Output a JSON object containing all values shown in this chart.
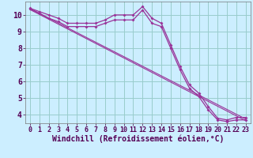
{
  "xlabel": "Windchill (Refroidissement éolien,°C)",
  "background_color": "#cceeff",
  "grid_color": "#99cccc",
  "line_color": "#993399",
  "xlim": [
    -0.5,
    23.5
  ],
  "ylim": [
    3.5,
    10.8
  ],
  "xticks": [
    0,
    1,
    2,
    3,
    4,
    5,
    6,
    7,
    8,
    9,
    10,
    11,
    12,
    13,
    14,
    15,
    16,
    17,
    18,
    19,
    20,
    21,
    22,
    23
  ],
  "yticks": [
    4,
    5,
    6,
    7,
    8,
    9,
    10
  ],
  "line1_x": [
    0,
    1,
    2,
    3,
    4,
    5,
    6,
    7,
    8,
    9,
    10,
    11,
    12,
    13,
    14,
    15,
    16,
    17,
    18,
    19,
    20,
    21,
    22,
    23
  ],
  "line1_y": [
    10.4,
    10.2,
    10.0,
    9.8,
    9.5,
    9.5,
    9.5,
    9.5,
    9.7,
    10.0,
    10.0,
    10.0,
    10.5,
    9.8,
    9.5,
    8.2,
    6.9,
    5.8,
    5.3,
    4.5,
    3.8,
    3.7,
    3.85,
    3.85
  ],
  "line2_x": [
    0,
    1,
    2,
    3,
    4,
    5,
    6,
    7,
    8,
    9,
    10,
    11,
    12,
    13,
    14,
    15,
    16,
    17,
    18,
    19,
    20,
    21,
    22,
    23
  ],
  "line2_y": [
    10.35,
    10.1,
    9.8,
    9.6,
    9.3,
    9.3,
    9.3,
    9.3,
    9.5,
    9.7,
    9.7,
    9.7,
    10.3,
    9.5,
    9.3,
    8.0,
    6.7,
    5.6,
    5.1,
    4.3,
    3.7,
    3.6,
    3.7,
    3.7
  ],
  "line3_x": [
    0,
    23
  ],
  "line3_y": [
    10.38,
    3.75
  ],
  "line4_x": [
    0,
    23
  ],
  "line4_y": [
    10.32,
    3.65
  ],
  "tick_fontsize": 6,
  "label_fontsize": 7
}
